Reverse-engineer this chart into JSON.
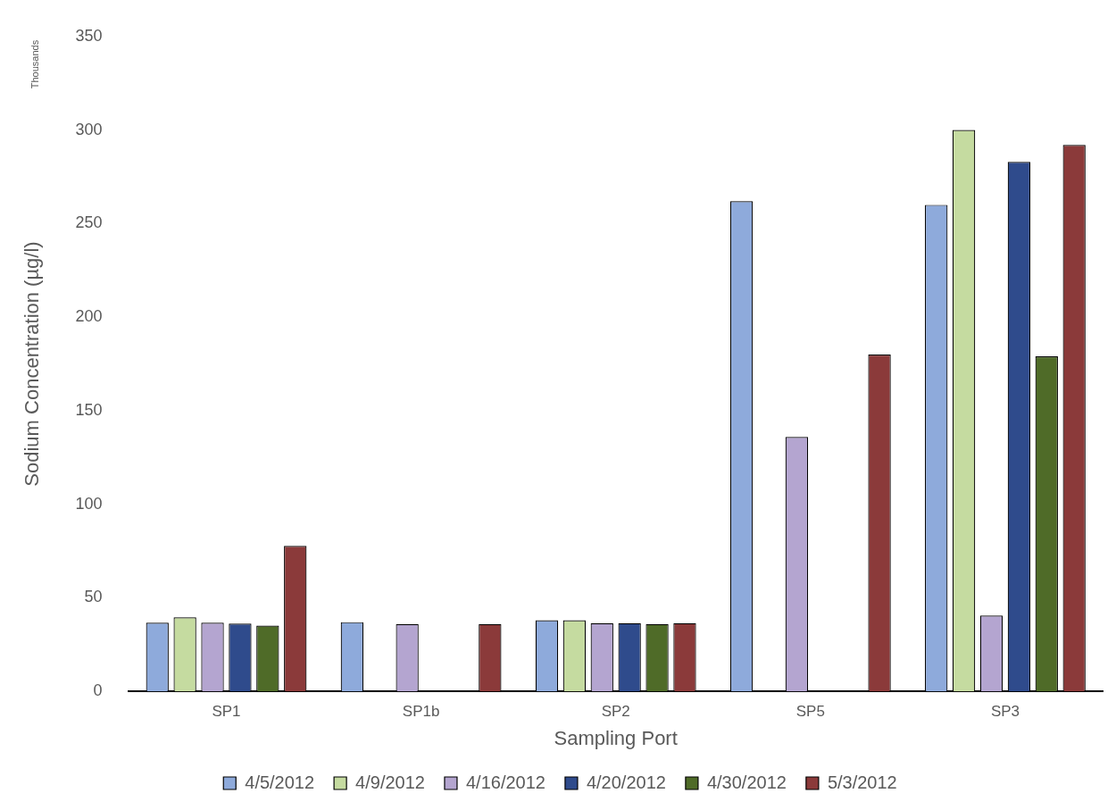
{
  "chart_data": {
    "type": "bar",
    "xlabel": "Sampling Port",
    "ylabel": "Sodium Concentration (µg/l)",
    "annotations": [
      "Thousands"
    ],
    "categories": [
      "SP1",
      "SP1b",
      "SP2",
      "SP5",
      "SP3"
    ],
    "series": [
      {
        "name": "4/5/2012",
        "color": "#8eaadb",
        "values": [
          36.7,
          37,
          38,
          262,
          260
        ]
      },
      {
        "name": "4/9/2012",
        "color": "#c5dba0",
        "values": [
          39.6,
          null,
          38,
          null,
          300
        ]
      },
      {
        "name": "4/16/2012",
        "color": "#b4a5d0",
        "values": [
          36.7,
          36,
          36.5,
          136,
          40.5
        ]
      },
      {
        "name": "4/20/2012",
        "color": "#2f4b8c",
        "values": [
          36.2,
          null,
          36.5,
          null,
          283
        ]
      },
      {
        "name": "4/30/2012",
        "color": "#4f6b28",
        "values": [
          35.2,
          null,
          36,
          null,
          179
        ]
      },
      {
        "name": "5/3/2012",
        "color": "#8b3a3a",
        "values": [
          77.8,
          36,
          36.5,
          180,
          292
        ]
      }
    ],
    "ylim": [
      0,
      350
    ],
    "yticks": [
      0,
      50,
      100,
      150,
      200,
      250,
      300,
      350
    ],
    "grid": false,
    "legend": "bottom"
  }
}
